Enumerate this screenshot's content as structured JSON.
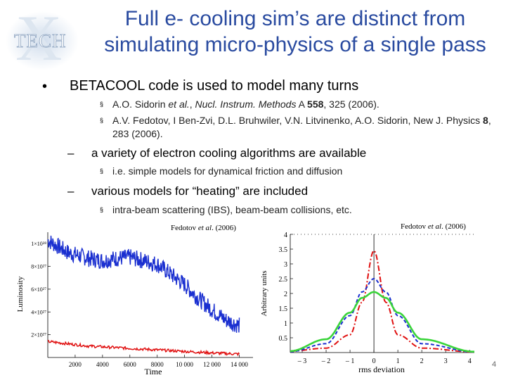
{
  "logo": {
    "text": "TECH",
    "letter": "X"
  },
  "title": {
    "line1": "Full e- cooling sim’s are distinct from",
    "line2": "simulating micro-physics of a single pass"
  },
  "bullet": {
    "marker": "•",
    "text": "BETACOOL code is used to model many turns"
  },
  "refs": [
    {
      "marker": "§",
      "pre": "A.O. Sidorin ",
      "em": "et al.",
      "mid": ", ",
      "journal": "Nucl. Instrum. Methods",
      "vol_pre": " A ",
      "vol": "558",
      "post": ", 325 (2006)."
    },
    {
      "marker": "§",
      "pre": "A.V. Fedotov, I Ben-Zvi, D.L. Bruhwiler, V.N. Litvinenko, A.O. Sidorin, New J. Physics ",
      "vol": "8",
      "post": ", 283 (2006)."
    }
  ],
  "sub1": {
    "marker": "–",
    "text": "a variety of electron cooling algorithms are available"
  },
  "sub1_item": {
    "marker": "§",
    "text": "i.e. simple models for dynamical friction and diffusion"
  },
  "sub2": {
    "marker": "–",
    "text": "various models for “heating” are included"
  },
  "sub2_item": {
    "marker": "§",
    "text": "intra-beam scattering (IBS), beam-beam collisions, etc."
  },
  "cite_left": {
    "pre": "Fedotov ",
    "em": "et al",
    "post": ". (2006)"
  },
  "cite_right": {
    "pre": "Fedotov ",
    "em": "et al",
    "post": ". (2006)"
  },
  "page_number": "4",
  "colors": {
    "title": "#2a4ba0",
    "blue": "#1a2fd0",
    "red": "#e01010",
    "green": "#3ad43a"
  },
  "chart_data": [
    {
      "type": "line",
      "title": "",
      "xlabel": "Time",
      "ylabel": "Luminosity",
      "x_ticks": [
        "2000",
        "4000",
        "6000",
        "8000",
        "10 000",
        "12 000",
        "14 000"
      ],
      "y_ticks": [
        "1×10²⁸",
        "8×10²⁷",
        "6×10²⁷",
        "4×10²⁷",
        "2×10²⁷"
      ],
      "xlim": [
        0,
        15000
      ],
      "ylim": [
        0,
        1.1e+28
      ],
      "series": [
        {
          "name": "blue",
          "x": [
            0,
            1500,
            3000,
            4000,
            5000,
            6000,
            8000,
            9000,
            10000,
            11000,
            12000,
            13000,
            14000
          ],
          "values": [
            1.03e+28,
            9.2e+27,
            8.7e+27,
            8.5e+27,
            8.7e+27,
            8.8e+27,
            8.2e+27,
            7.3e+27,
            6.4e+27,
            5.2e+27,
            4.2e+27,
            3.3e+27,
            2.8e+27
          ]
        },
        {
          "name": "red",
          "x": [
            0,
            1500,
            3000,
            6000,
            9000,
            12000,
            14000
          ],
          "values": [
            1.4e+27,
            1.2e+27,
            1e+27,
            8e+26,
            6e+26,
            4e+26,
            3e+26
          ]
        }
      ]
    },
    {
      "type": "line",
      "title": "",
      "xlabel": "rms deviation",
      "ylabel": "Arbitrary units",
      "x_ticks": [
        "– 3",
        "– 2",
        "– 1",
        "0",
        "1",
        "2",
        "3",
        "4"
      ],
      "y_ticks": [
        "4",
        "3.5",
        "3",
        "2.5",
        "2",
        "1.5",
        "1",
        "0.5"
      ],
      "xlim": [
        -3.5,
        4.2
      ],
      "ylim": [
        0,
        4
      ],
      "series": [
        {
          "name": "red-dashdot",
          "x": [
            -3.5,
            -2,
            -1,
            -0.5,
            0,
            0.5,
            1,
            2,
            4.2
          ],
          "values": [
            0.05,
            0.15,
            0.6,
            1.7,
            3.45,
            1.7,
            0.6,
            0.15,
            0.02
          ]
        },
        {
          "name": "blue-dashed",
          "x": [
            -3.5,
            -2,
            -1,
            -0.5,
            0,
            0.5,
            1,
            2,
            4.2
          ],
          "values": [
            0.03,
            0.3,
            1.25,
            2.05,
            2.5,
            2.05,
            1.25,
            0.3,
            0.02
          ]
        },
        {
          "name": "green",
          "x": [
            -3.5,
            -2,
            -1,
            -0.5,
            0,
            0.5,
            1,
            2,
            4.2
          ],
          "values": [
            0.05,
            0.45,
            1.35,
            1.85,
            2.05,
            1.85,
            1.35,
            0.45,
            0.03
          ]
        }
      ]
    }
  ]
}
